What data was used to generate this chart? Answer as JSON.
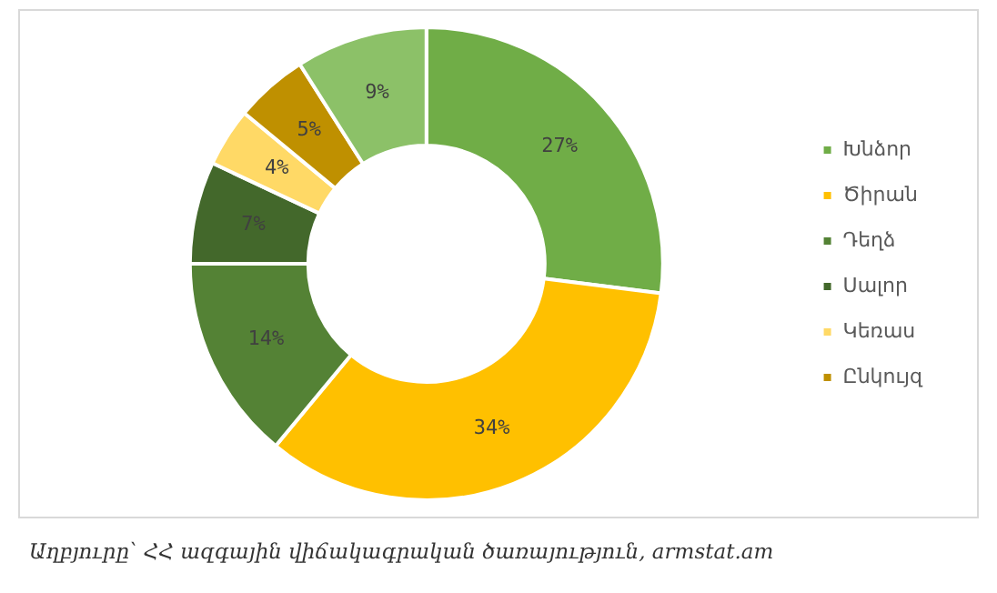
{
  "chart_data": {
    "type": "donut",
    "categories": [
      "Խնձոր",
      "Ծիրան",
      "Դեղձ",
      "Սալոր",
      "Կեռաս",
      "Ընկույզ",
      null
    ],
    "values": [
      27,
      34,
      14,
      7,
      4,
      5,
      9
    ],
    "colors": [
      "#70ad47",
      "#ffc000",
      "#548235",
      "#43682b",
      "#ffd966",
      "#bf9000",
      "#8cc168"
    ],
    "value_labels": [
      "27%",
      "34%",
      "14%",
      "7%",
      "4%",
      "5%",
      "9%"
    ],
    "legend": "right",
    "annotations": [
      "Աղբյուրը՝ ՀՀ ազգային վիճակագրական ծառայություն, armstat.am"
    ]
  }
}
